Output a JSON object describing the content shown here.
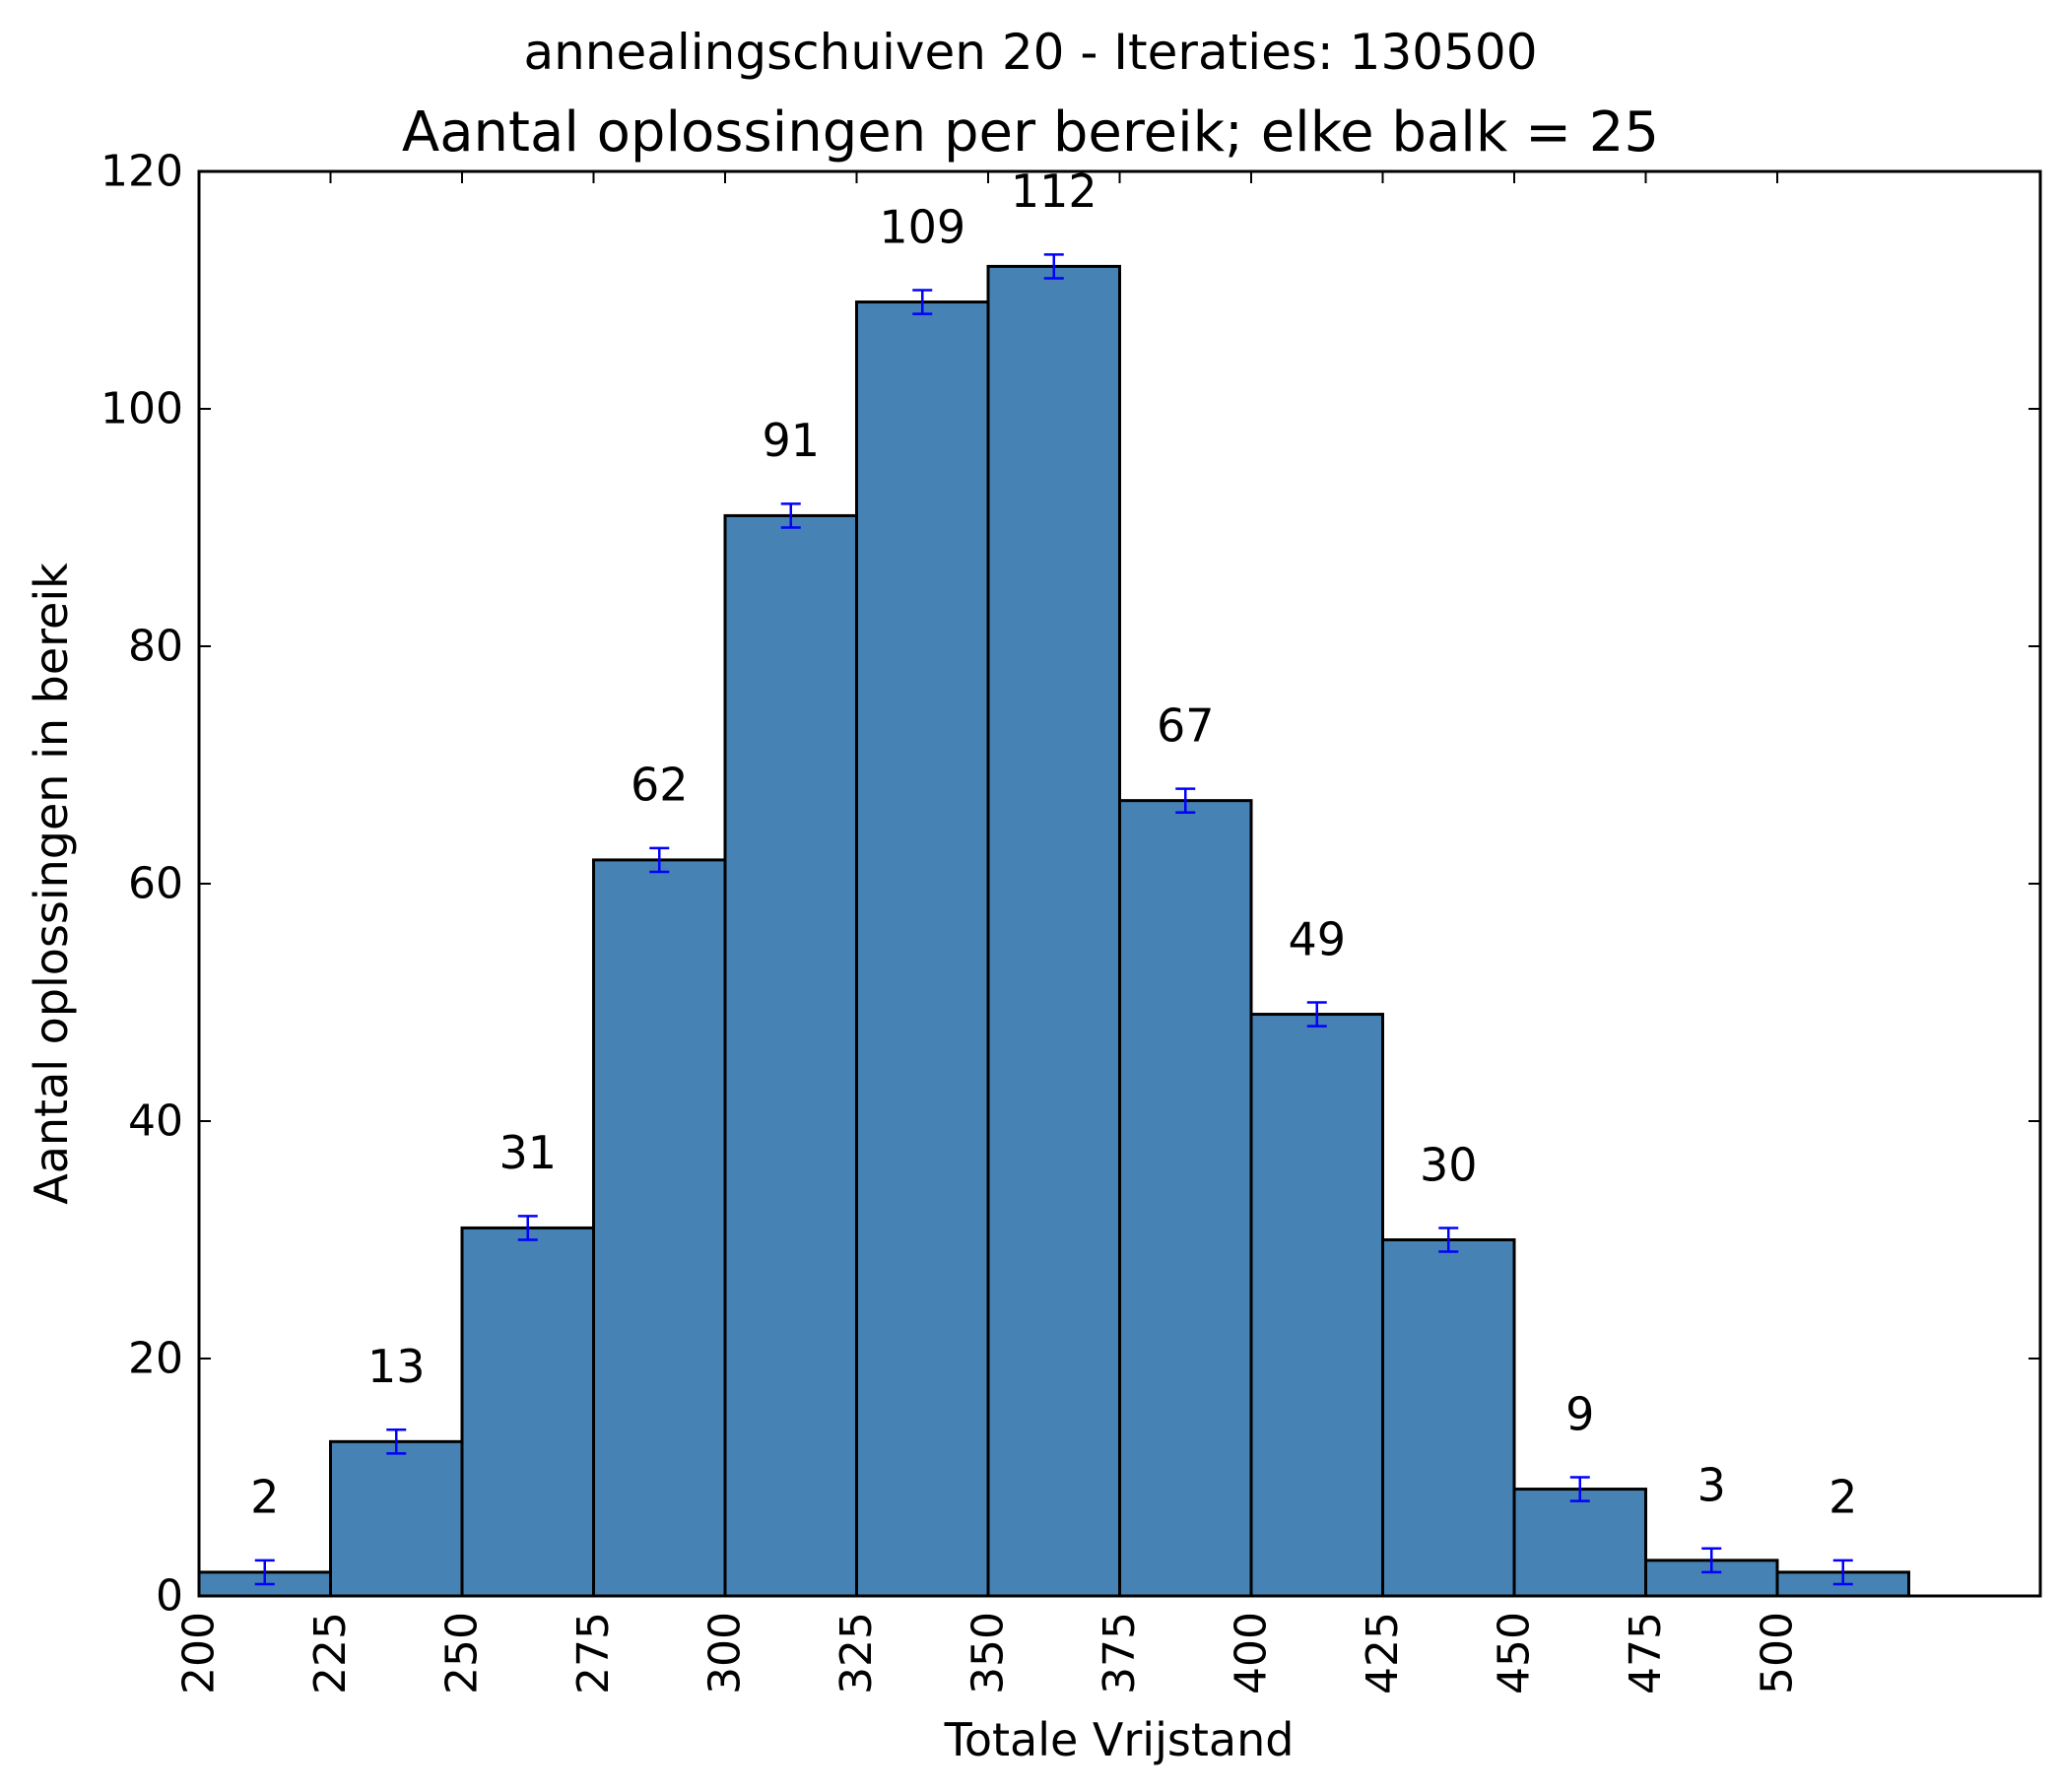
{
  "chart_data": {
    "type": "bar",
    "suptitle": "annealingschuiven 20 - Iteraties: 130500",
    "title": "Aantal oplossingen per bereik; elke balk = 25",
    "xlabel": "Totale Vrijstand",
    "ylabel": "Aantal oplossingen in bereik",
    "bin_width": 25,
    "xlim": [
      200,
      550
    ],
    "ylim": [
      0,
      120
    ],
    "xticks": [
      200,
      225,
      250,
      275,
      300,
      325,
      350,
      375,
      400,
      425,
      450,
      475,
      500
    ],
    "xtick_labels": [
      "200",
      "225",
      "250",
      "275",
      "300",
      "325",
      "350",
      "375",
      "400",
      "425",
      "450",
      "475",
      "500"
    ],
    "yticks": [
      0,
      20,
      40,
      60,
      80,
      100,
      120
    ],
    "ytick_labels": [
      "0",
      "20",
      "40",
      "60",
      "80",
      "100",
      "120"
    ],
    "bins": [
      200,
      225,
      250,
      275,
      300,
      325,
      350,
      375,
      400,
      425,
      450,
      475,
      500
    ],
    "values": [
      2,
      13,
      31,
      62,
      91,
      109,
      112,
      67,
      49,
      30,
      9,
      3,
      2
    ],
    "value_labels": [
      "2",
      "13",
      "31",
      "62",
      "91",
      "109",
      "112",
      "67",
      "49",
      "30",
      "9",
      "3",
      "2"
    ],
    "error": 1,
    "bar_color": "#4682b4",
    "error_color": "#0000ff",
    "grid": false
  }
}
